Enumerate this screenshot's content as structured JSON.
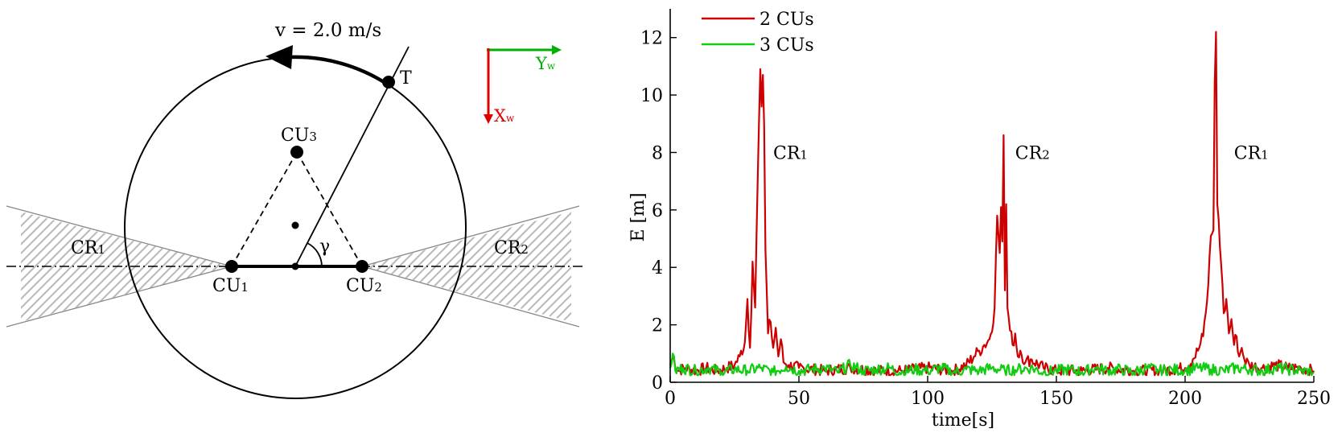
{
  "diagram": {
    "velocity_label": "v = 2.0 m/s",
    "target_label": "T",
    "cu_labels": {
      "cu1": "CU",
      "cu1_sub": "1",
      "cu2": "CU",
      "cu2_sub": "2",
      "cu3": "CU",
      "cu3_sub": "3"
    },
    "region_labels": {
      "cr1": "CR",
      "cr1_sub": "1",
      "cr2": "CR",
      "cr2_sub": "2"
    },
    "angle_label": "γ",
    "axes_labels": {
      "x": "X",
      "x_sub": "w",
      "y": "Y",
      "y_sub": "w"
    },
    "colors": {
      "x_axis": "#e00000",
      "y_axis": "#00b000"
    }
  },
  "chart_data": {
    "type": "line",
    "xlabel": "time[s]",
    "ylabel": "E [m]",
    "xlim": [
      0,
      250
    ],
    "ylim": [
      0,
      13
    ],
    "xticks": [
      0,
      50,
      100,
      150,
      200,
      250
    ],
    "yticks": [
      0,
      2,
      4,
      6,
      8,
      10,
      12
    ],
    "legend_position": "top-left",
    "grid": false,
    "series": [
      {
        "name": "2 CUs",
        "color": "#cc0000",
        "points": [
          [
            0,
            0.6
          ],
          [
            1,
            0.9
          ],
          [
            3,
            0.4
          ],
          [
            6,
            0.5
          ],
          [
            10,
            0.4
          ],
          [
            14,
            0.5
          ],
          [
            18,
            0.4
          ],
          [
            22,
            0.5
          ],
          [
            25,
            0.6
          ],
          [
            27,
            0.9
          ],
          [
            29,
            1.4
          ],
          [
            30,
            2.9
          ],
          [
            31,
            1.2
          ],
          [
            32,
            4.2
          ],
          [
            33,
            2.6
          ],
          [
            34,
            7.1
          ],
          [
            35,
            10.9
          ],
          [
            35.5,
            9.6
          ],
          [
            36,
            10.7
          ],
          [
            36.5,
            8.9
          ],
          [
            37,
            4.6
          ],
          [
            37.5,
            3.2
          ],
          [
            38,
            1.7
          ],
          [
            39,
            2.1
          ],
          [
            40,
            1.2
          ],
          [
            41,
            1.9
          ],
          [
            42,
            0.9
          ],
          [
            43,
            1.5
          ],
          [
            44,
            0.7
          ],
          [
            46,
            0.6
          ],
          [
            50,
            0.5
          ],
          [
            60,
            0.4
          ],
          [
            70,
            0.5
          ],
          [
            80,
            0.4
          ],
          [
            90,
            0.4
          ],
          [
            100,
            0.5
          ],
          [
            110,
            0.4
          ],
          [
            115,
            0.6
          ],
          [
            118,
            0.9
          ],
          [
            120,
            1.1
          ],
          [
            122,
            1.3
          ],
          [
            124,
            1.5
          ],
          [
            126,
            2.6
          ],
          [
            127,
            5.8
          ],
          [
            128,
            4.5
          ],
          [
            128.5,
            6.1
          ],
          [
            129,
            4.9
          ],
          [
            129.5,
            8.6
          ],
          [
            130,
            3.2
          ],
          [
            130.5,
            6.2
          ],
          [
            131,
            2.6
          ],
          [
            132,
            1.8
          ],
          [
            133,
            1.3
          ],
          [
            134,
            1.7
          ],
          [
            135,
            0.9
          ],
          [
            136,
            1.1
          ],
          [
            138,
            0.7
          ],
          [
            140,
            0.8
          ],
          [
            145,
            0.5
          ],
          [
            150,
            0.4
          ],
          [
            160,
            0.4
          ],
          [
            170,
            0.5
          ],
          [
            180,
            0.4
          ],
          [
            190,
            0.4
          ],
          [
            200,
            0.5
          ],
          [
            203,
            0.8
          ],
          [
            205,
            1.1
          ],
          [
            207,
            1.6
          ],
          [
            208,
            2.4
          ],
          [
            209,
            3.4
          ],
          [
            210,
            5.1
          ],
          [
            211,
            5.3
          ],
          [
            211.5,
            10.4
          ],
          [
            212,
            12.2
          ],
          [
            212.5,
            6.2
          ],
          [
            213,
            5.7
          ],
          [
            214,
            4.1
          ],
          [
            215,
            2.4
          ],
          [
            216,
            2.9
          ],
          [
            217,
            1.7
          ],
          [
            218,
            2.2
          ],
          [
            219,
            1.3
          ],
          [
            220,
            1.6
          ],
          [
            221,
            0.9
          ],
          [
            222,
            1.2
          ],
          [
            223,
            0.8
          ],
          [
            225,
            0.6
          ],
          [
            230,
            0.5
          ],
          [
            235,
            0.6
          ],
          [
            240,
            0.5
          ],
          [
            245,
            0.5
          ],
          [
            250,
            0.4
          ]
        ]
      },
      {
        "name": "3 CUs",
        "color": "#11cc11",
        "points": [
          [
            0,
            0.5
          ],
          [
            1,
            1.0
          ],
          [
            2,
            0.4
          ],
          [
            5,
            0.5
          ],
          [
            10,
            0.4
          ],
          [
            15,
            0.5
          ],
          [
            20,
            0.35
          ],
          [
            25,
            0.45
          ],
          [
            30,
            0.4
          ],
          [
            35,
            0.5
          ],
          [
            40,
            0.35
          ],
          [
            45,
            0.55
          ],
          [
            50,
            0.4
          ],
          [
            55,
            0.45
          ],
          [
            60,
            0.5
          ],
          [
            65,
            0.35
          ],
          [
            70,
            0.6
          ],
          [
            75,
            0.4
          ],
          [
            80,
            0.45
          ],
          [
            85,
            0.5
          ],
          [
            90,
            0.35
          ],
          [
            95,
            0.45
          ],
          [
            100,
            0.4
          ],
          [
            105,
            0.5
          ],
          [
            110,
            0.35
          ],
          [
            115,
            0.45
          ],
          [
            120,
            0.4
          ],
          [
            125,
            0.5
          ],
          [
            130,
            0.4
          ],
          [
            135,
            0.45
          ],
          [
            140,
            0.5
          ],
          [
            145,
            0.35
          ],
          [
            150,
            0.4
          ],
          [
            155,
            0.45
          ],
          [
            160,
            0.35
          ],
          [
            165,
            0.5
          ],
          [
            170,
            0.4
          ],
          [
            175,
            0.45
          ],
          [
            180,
            0.35
          ],
          [
            185,
            0.5
          ],
          [
            190,
            0.4
          ],
          [
            195,
            0.45
          ],
          [
            200,
            0.4
          ],
          [
            205,
            0.5
          ],
          [
            210,
            0.45
          ],
          [
            215,
            0.4
          ],
          [
            220,
            0.5
          ],
          [
            225,
            0.45
          ],
          [
            230,
            0.4
          ],
          [
            235,
            0.5
          ],
          [
            240,
            0.45
          ],
          [
            245,
            0.4
          ],
          [
            250,
            0.35
          ]
        ]
      }
    ],
    "annotations": [
      {
        "text": "CR",
        "sub": "1",
        "x": 40,
        "y": 8
      },
      {
        "text": "CR",
        "sub": "2",
        "x": 134,
        "y": 8
      },
      {
        "text": "CR",
        "sub": "1",
        "x": 219,
        "y": 8
      }
    ]
  }
}
